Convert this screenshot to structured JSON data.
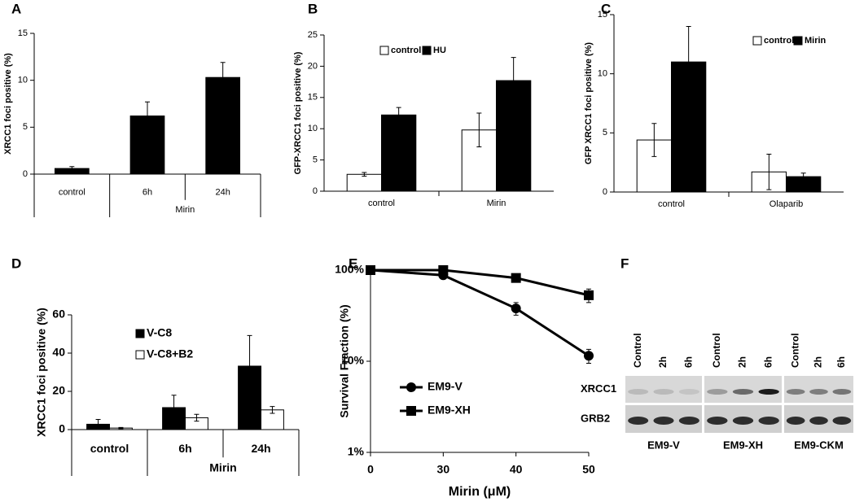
{
  "chart_data": [
    {
      "type": "bar",
      "panel": "A",
      "ylabel": "XRCC1 foci positive (%)",
      "categories": [
        "control",
        "6h",
        "24h"
      ],
      "group_label": "Mirin",
      "values": [
        0.6,
        6.2,
        10.3
      ],
      "errors": [
        0.2,
        1.5,
        1.6
      ],
      "color": "#000000",
      "ylim": [
        0,
        15
      ],
      "yticks": [
        0,
        5,
        10,
        15
      ]
    },
    {
      "type": "bar",
      "panel": "B",
      "ylabel": "GFP-XRCC1 foci positive (%)",
      "categories": [
        "control",
        "Mirin"
      ],
      "series": [
        {
          "name": "control",
          "color": "#ffffff",
          "values": [
            2.7,
            9.8
          ],
          "errors": [
            0.3,
            2.7
          ]
        },
        {
          "name": "HU",
          "color": "#000000",
          "values": [
            12.2,
            17.7
          ],
          "errors": [
            1.2,
            3.7
          ]
        }
      ],
      "ylim": [
        0,
        25
      ],
      "yticks": [
        0,
        5,
        10,
        15,
        20,
        25
      ]
    },
    {
      "type": "bar",
      "panel": "C",
      "ylabel": "GFP XRCC1 foci positive (%)",
      "categories": [
        "control",
        "Olaparib"
      ],
      "series": [
        {
          "name": "control",
          "color": "#ffffff",
          "values": [
            4.4,
            1.7
          ],
          "errors": [
            1.4,
            1.5
          ]
        },
        {
          "name": "Mirin",
          "color": "#000000",
          "values": [
            11.0,
            1.3
          ],
          "errors": [
            3.0,
            0.3
          ]
        }
      ],
      "ylim": [
        0,
        15
      ],
      "yticks": [
        0,
        5,
        10,
        15
      ]
    },
    {
      "type": "bar",
      "panel": "D",
      "ylabel": "XRCC1 foci positive (%)",
      "categories": [
        "control",
        "6h",
        "24h"
      ],
      "group_label": "Mirin",
      "series": [
        {
          "name": "V-C8",
          "color": "#000000",
          "values": [
            2.8,
            11.5,
            33.2
          ],
          "errors": [
            2.5,
            6.5,
            16
          ]
        },
        {
          "name": "V-C8+B2",
          "color": "#ffffff",
          "values": [
            0.8,
            6.2,
            10.3
          ],
          "errors": [
            0.3,
            1.8,
            1.8
          ]
        }
      ],
      "ylim": [
        0,
        60
      ],
      "yticks": [
        0,
        20,
        40,
        60
      ]
    },
    {
      "type": "line",
      "panel": "E",
      "ylabel": "Survival Fraction (%)",
      "xlabel": "Mirin (μM)",
      "categories": [
        "0",
        "30",
        "40",
        "50"
      ],
      "log_y": true,
      "series": [
        {
          "name": "EM9-V",
          "color": "#000000",
          "marker": "circle",
          "values": [
            100,
            88,
            38,
            11.5
          ],
          "errors": [
            0,
            3,
            6,
            2
          ]
        },
        {
          "name": "EM9-XH",
          "color": "#000000",
          "marker": "square",
          "values": [
            100,
            100,
            82,
            53
          ],
          "errors": [
            0,
            4,
            8,
            9
          ]
        }
      ],
      "ylim": [
        1,
        100
      ],
      "yticks": [
        {
          "value": 1,
          "label": "1%"
        },
        {
          "value": 10,
          "label": "10%"
        },
        {
          "value": 100,
          "label": "100%"
        }
      ]
    },
    {
      "type": "blot",
      "panel": "F",
      "lanes": [
        "Control",
        "2h",
        "6h"
      ],
      "rows": [
        "XRCC1",
        "GRB2"
      ],
      "groups": [
        "EM9-V",
        "EM9-XH",
        "EM9-CKM"
      ]
    }
  ]
}
